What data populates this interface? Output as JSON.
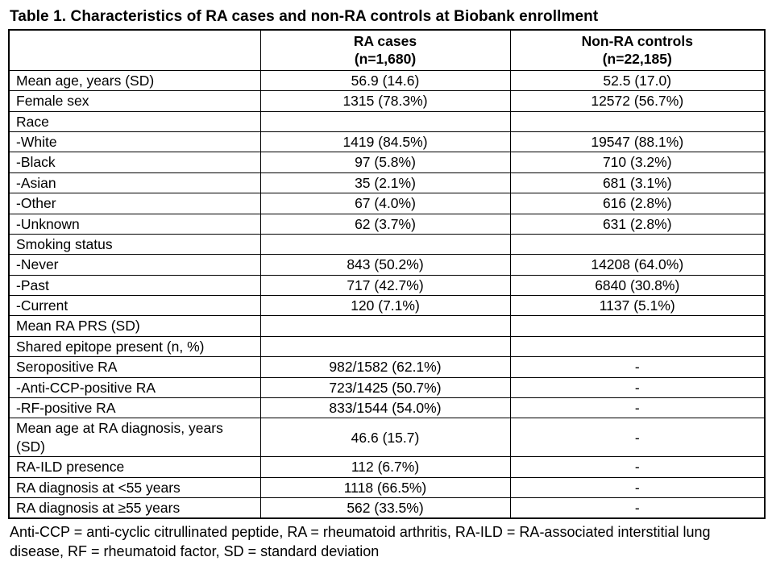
{
  "title": "Table 1. Characteristics of RA cases and non-RA controls at Biobank enrollment",
  "table": {
    "columns": [
      {
        "line1": "",
        "line2": ""
      },
      {
        "line1": "RA cases",
        "line2": "(n=1,680)"
      },
      {
        "line1": "Non-RA controls",
        "line2": "(n=22,185)"
      }
    ],
    "rows": [
      {
        "label": "Mean age, years (SD)",
        "ra": "56.9 (14.6)",
        "control": "52.5 (17.0)"
      },
      {
        "label": "Female sex",
        "ra": "1315 (78.3%)",
        "control": "12572 (56.7%)"
      },
      {
        "label": "Race",
        "ra": "",
        "control": ""
      },
      {
        "label": "-White",
        "ra": "1419 (84.5%)",
        "control": "19547 (88.1%)"
      },
      {
        "label": "-Black",
        "ra": "97 (5.8%)",
        "control": "710 (3.2%)"
      },
      {
        "label": "-Asian",
        "ra": "35 (2.1%)",
        "control": "681 (3.1%)"
      },
      {
        "label": "-Other",
        "ra": "67 (4.0%)",
        "control": "616 (2.8%)"
      },
      {
        "label": "-Unknown",
        "ra": "62 (3.7%)",
        "control": "631 (2.8%)"
      },
      {
        "label": "Smoking status",
        "ra": "",
        "control": ""
      },
      {
        "label": "-Never",
        "ra": "843 (50.2%)",
        "control": "14208 (64.0%)"
      },
      {
        "label": "-Past",
        "ra": "717 (42.7%)",
        "control": "6840 (30.8%)"
      },
      {
        "label": "-Current",
        "ra": "120 (7.1%)",
        "control": "1137 (5.1%)"
      },
      {
        "label": "Mean RA PRS (SD)",
        "ra": "",
        "control": ""
      },
      {
        "label": "Shared epitope present (n, %)",
        "ra": "",
        "control": ""
      },
      {
        "label": "Seropositive RA",
        "ra": "982/1582 (62.1%)",
        "control": "-"
      },
      {
        "label": "-Anti-CCP-positive RA",
        "ra": "723/1425 (50.7%)",
        "control": "-"
      },
      {
        "label": "-RF-positive RA",
        "ra": "833/1544 (54.0%)",
        "control": "-"
      },
      {
        "label": "Mean age at RA diagnosis, years (SD)",
        "ra": "46.6 (15.7)",
        "control": "-"
      },
      {
        "label": "RA-ILD presence",
        "ra": "112 (6.7%)",
        "control": "-"
      },
      {
        "label": "RA diagnosis at <55 years",
        "ra": "1118 (66.5%)",
        "control": "-"
      },
      {
        "label": "RA diagnosis at ≥55 years",
        "ra": "562 (33.5%)",
        "control": "-"
      }
    ]
  },
  "footnote": "Anti-CCP = anti-cyclic citrullinated peptide, RA = rheumatoid arthritis, RA-ILD = RA-associated interstitial lung disease, RF = rheumatoid factor, SD = standard deviation"
}
